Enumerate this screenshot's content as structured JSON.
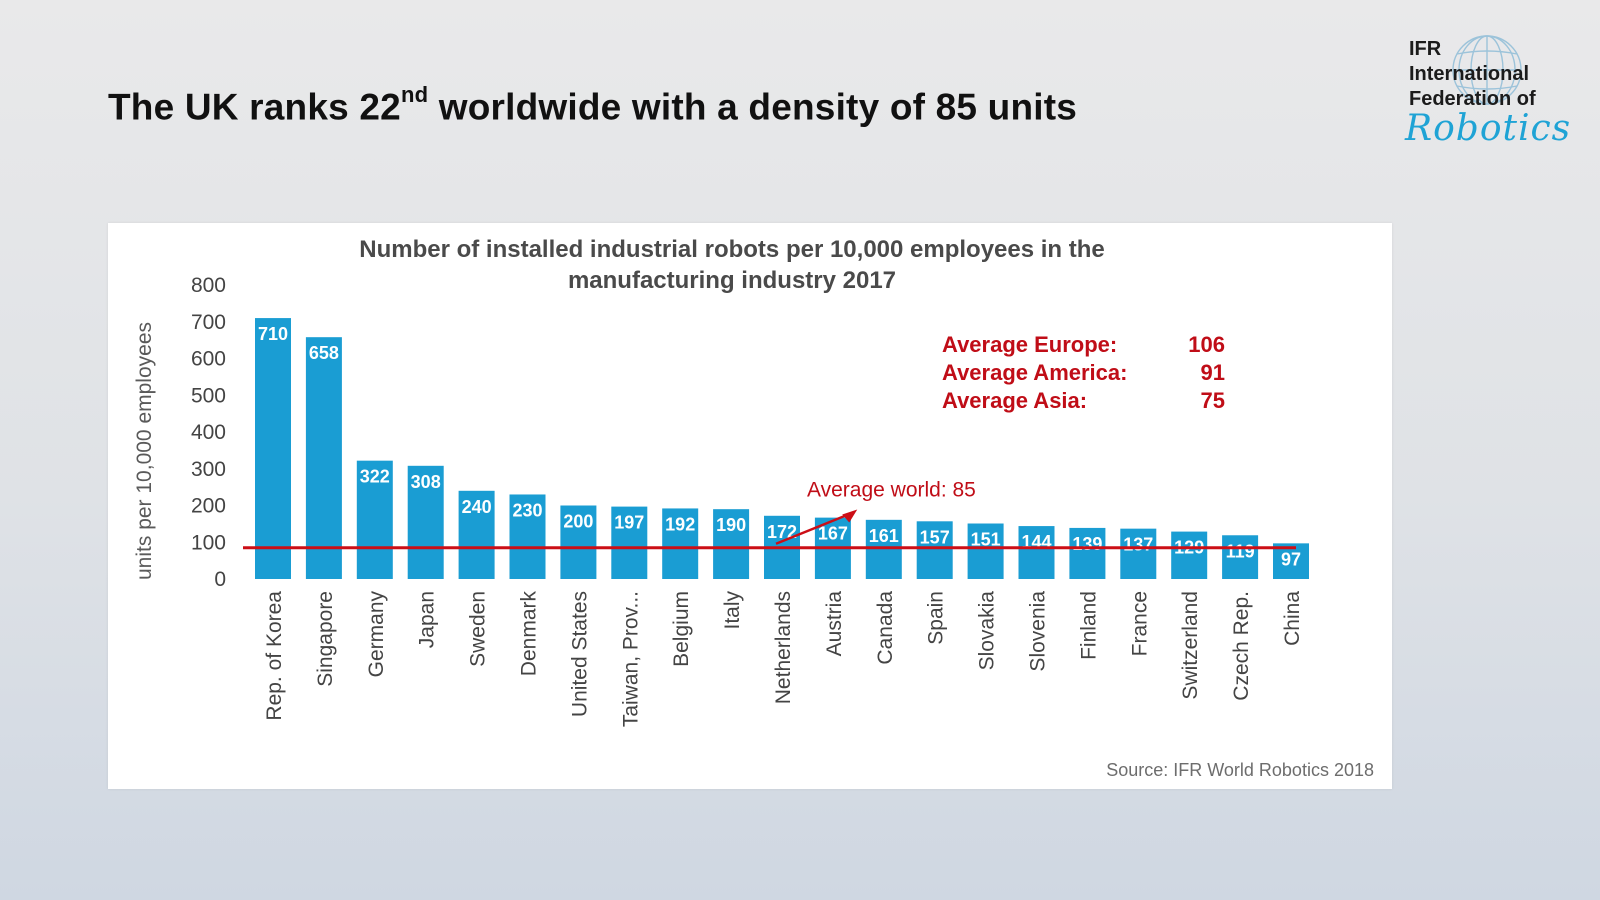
{
  "slide": {
    "title_main": "The UK ranks 22",
    "title_sup": "nd",
    "title_rest": " worldwide with a density of 85 units"
  },
  "logo": {
    "line1": "IFR",
    "line2": "International",
    "line3": "Federation of",
    "line4": "Robotics"
  },
  "colors": {
    "bar": "#1a9dd3",
    "avg_line": "#cc0e16",
    "annotation": "#c00d17"
  },
  "chart_data": {
    "type": "bar",
    "title_line1": "Number of installed industrial robots per 10,000 employees in the",
    "title_line2": "manufacturing industry 2017",
    "ylabel": "units per 10,000 employees",
    "xlabel": "",
    "ylim": [
      0,
      800
    ],
    "yticks": [
      0,
      100,
      200,
      300,
      400,
      500,
      600,
      700,
      800
    ],
    "grid": false,
    "categories": [
      "Rep. of Korea",
      "Singapore",
      "Germany",
      "Japan",
      "Sweden",
      "Denmark",
      "United States",
      "Taiwan, Prov...",
      "Belgium",
      "Italy",
      "Netherlands",
      "Austria",
      "Canada",
      "Spain",
      "Slovakia",
      "Slovenia",
      "Finland",
      "France",
      "Switzerland",
      "Czech Rep.",
      "China"
    ],
    "values": [
      710,
      658,
      322,
      308,
      240,
      230,
      200,
      197,
      192,
      190,
      172,
      167,
      161,
      157,
      151,
      144,
      139,
      137,
      129,
      119,
      97
    ],
    "reference_line": {
      "label": "Average world: 85",
      "value": 85
    },
    "averages": [
      {
        "label": "Average Europe:",
        "value": "106"
      },
      {
        "label": "Average America:",
        "value": "91"
      },
      {
        "label": "Average Asia:",
        "value": "75"
      }
    ],
    "source": "Source: IFR World Robotics 2018"
  }
}
